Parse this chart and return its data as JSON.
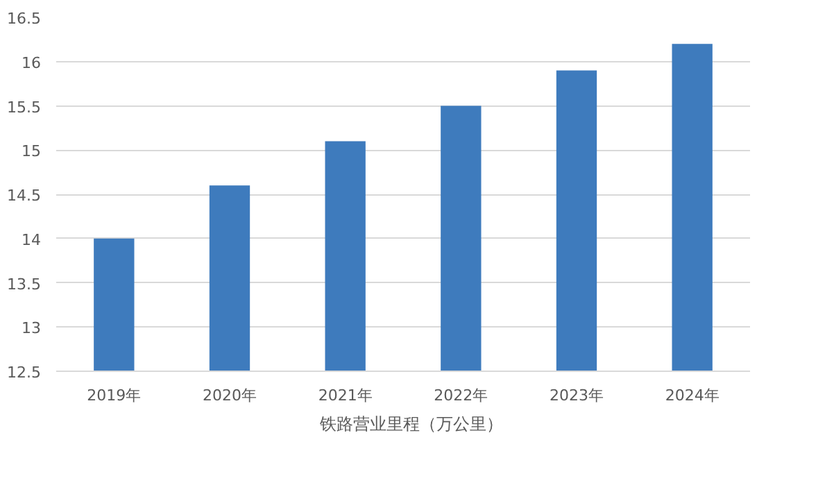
{
  "chart_data": {
    "type": "bar",
    "categories": [
      "2019年",
      "2020年",
      "2021年",
      "2022年",
      "2023年",
      "2024年"
    ],
    "series": [
      {
        "name": "铁路营业里程（万公里）",
        "color": "#3e7bbd",
        "values": [
          14,
          14.6,
          15.1,
          15.5,
          15.9,
          16.2
        ]
      }
    ],
    "ylim": [
      12.5,
      16.5
    ],
    "yticks": [
      12.5,
      13,
      13.5,
      14,
      14.5,
      15,
      15.5,
      16,
      16.5
    ],
    "grid": "y",
    "legend": "bottom"
  }
}
